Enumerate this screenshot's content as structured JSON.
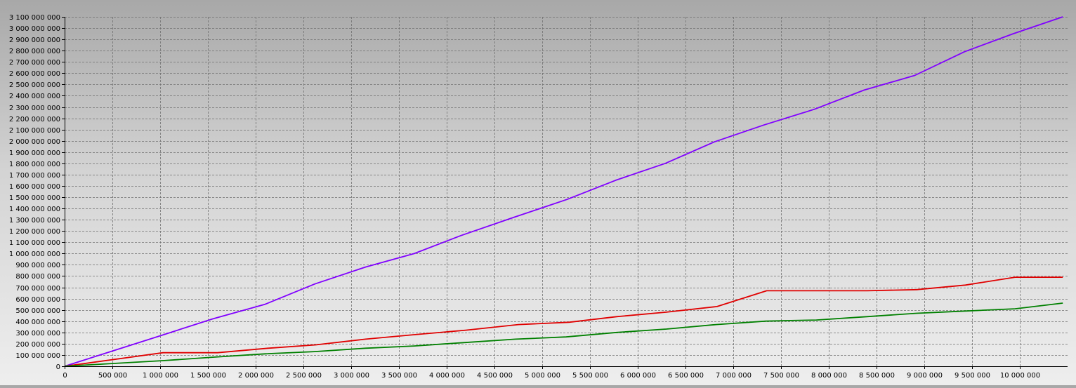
{
  "chart_data": {
    "type": "line",
    "title": "",
    "xlabel": "",
    "ylabel": "",
    "xlim": [
      0,
      10500000
    ],
    "ylim": [
      0,
      3100000000
    ],
    "grid": true,
    "legend": "none",
    "x_ticks": [
      0,
      500000,
      1000000,
      1500000,
      2000000,
      2500000,
      3000000,
      3500000,
      4000000,
      4500000,
      5000000,
      5500000,
      6000000,
      6500000,
      7000000,
      7500000,
      8000000,
      8500000,
      9000000,
      9500000,
      10000000
    ],
    "x_tick_labels": [
      "0",
      "500 000",
      "1 000 000",
      "1 500 000",
      "2 000 000",
      "2 500 000",
      "3 000 000",
      "3 500 000",
      "4 000 000",
      "4 500 000",
      "5 000 000",
      "5 500 000",
      "6 000 000",
      "6 500 000",
      "7 000 000",
      "7 500 000",
      "8 000 000",
      "8 500 000",
      "9 000 000",
      "9 500 000",
      "10 000 000"
    ],
    "y_ticks": [
      0,
      100000000,
      200000000,
      300000000,
      400000000,
      500000000,
      600000000,
      700000000,
      800000000,
      900000000,
      1000000000,
      1100000000,
      1200000000,
      1300000000,
      1400000000,
      1500000000,
      1600000000,
      1700000000,
      1800000000,
      1900000000,
      2000000000,
      2100000000,
      2200000000,
      2300000000,
      2400000000,
      2500000000,
      2600000000,
      2700000000,
      2800000000,
      2900000000,
      3000000000,
      3100000000
    ],
    "y_tick_labels": [
      "0",
      "100 000 000",
      "200 000 000",
      "300 000 000",
      "400 000 000",
      "500 000 000",
      "600 000 000",
      "700 000 000",
      "800 000 000",
      "900 000 000",
      "1 000 000 000",
      "1 100 000 000",
      "1 200 000 000",
      "1 300 000 000",
      "1 400 000 000",
      "1 500 000 000",
      "1 600 000 000",
      "1 700 000 000",
      "1 800 000 000",
      "1 900 000 000",
      "2 000 000 000",
      "2 100 000 000",
      "2 200 000 000",
      "2 300 000 000",
      "2 400 000 000",
      "2 500 000 000",
      "2 600 000 000",
      "2 700 000 000",
      "2 800 000 000",
      "2 900 000 000",
      "3 000 000 000",
      "3 100 000 000"
    ],
    "series": [
      {
        "color": "#8000ff",
        "x": [
          0,
          1000000,
          1550000,
          2100000,
          2620000,
          3150000,
          3660000,
          4150000,
          4700000,
          5260000,
          5770000,
          6290000,
          6800000,
          7320000,
          7850000,
          8370000,
          8900000,
          9420000,
          9930000,
          10450000
        ],
        "y": [
          0,
          270000000,
          420000000,
          550000000,
          730000000,
          880000000,
          1000000000,
          1160000000,
          1320000000,
          1480000000,
          1650000000,
          1800000000,
          1990000000,
          2140000000,
          2280000000,
          2450000000,
          2580000000,
          2790000000,
          2950000000,
          3100000000
        ]
      },
      {
        "color": "#e00000",
        "x": [
          0,
          1030000,
          1600000,
          2130000,
          2630000,
          3150000,
          3660000,
          4200000,
          4750000,
          5280000,
          5780000,
          6300000,
          6830000,
          7350000,
          7880000,
          8400000,
          8920000,
          9430000,
          9950000,
          10450000
        ],
        "y": [
          0,
          120000000,
          120000000,
          160000000,
          190000000,
          240000000,
          280000000,
          320000000,
          370000000,
          390000000,
          440000000,
          480000000,
          530000000,
          670000000,
          670000000,
          670000000,
          680000000,
          720000000,
          790000000,
          790000000
        ]
      },
      {
        "color": "#008000",
        "x": [
          0,
          1030000,
          1550000,
          2100000,
          2620000,
          3150000,
          3660000,
          4180000,
          4720000,
          5250000,
          5780000,
          6300000,
          6820000,
          7340000,
          7870000,
          8400000,
          8920000,
          9430000,
          9950000,
          10450000
        ],
        "y": [
          0,
          50000000,
          80000000,
          110000000,
          130000000,
          160000000,
          180000000,
          210000000,
          240000000,
          260000000,
          300000000,
          330000000,
          370000000,
          400000000,
          410000000,
          440000000,
          470000000,
          490000000,
          510000000,
          560000000
        ]
      }
    ]
  }
}
